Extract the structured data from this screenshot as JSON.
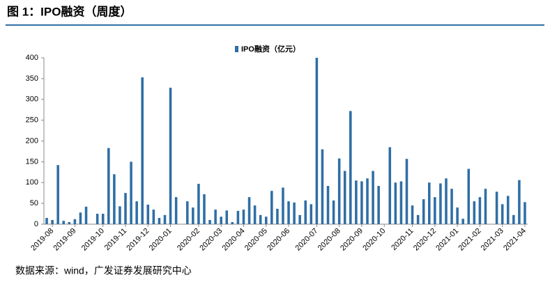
{
  "chart_data": {
    "type": "bar",
    "title": "图 1：IPO融资（周度）",
    "source": "数据来源：wind，广发证券发展研究中心",
    "categories": [
      null,
      "2019-08",
      null,
      null,
      null,
      "2019-09",
      null,
      null,
      null,
      null,
      "2019-10",
      null,
      null,
      null,
      "2019-11",
      null,
      null,
      null,
      "2019-12",
      null,
      null,
      null,
      "2020-01",
      null,
      null,
      null,
      null,
      "2020-02",
      null,
      null,
      null,
      "2020-03",
      null,
      null,
      null,
      "2020-04",
      null,
      null,
      null,
      "2020-05",
      null,
      null,
      null,
      "2020-06",
      null,
      null,
      null,
      null,
      "2020-07",
      null,
      null,
      null,
      "2020-08",
      null,
      null,
      null,
      "2020-09",
      null,
      null,
      null,
      "2020-10",
      null,
      null,
      null,
      null,
      "2020-11",
      null,
      null,
      null,
      "2020-12",
      null,
      null,
      null,
      "2021-01",
      null,
      null,
      null,
      "2021-02",
      null,
      null,
      null,
      "2021-03",
      null,
      null,
      null,
      "2021-04"
    ],
    "series": [
      {
        "name": "IPO融资（亿元）",
        "color": "#2f6ea5",
        "values": [
          15,
          10,
          142,
          8,
          5,
          12,
          28,
          42,
          0,
          25,
          25,
          183,
          120,
          43,
          75,
          150,
          55,
          353,
          47,
          35,
          15,
          22,
          328,
          65,
          0,
          55,
          40,
          97,
          72,
          10,
          35,
          18,
          33,
          5,
          32,
          35,
          65,
          45,
          22,
          18,
          80,
          37,
          88,
          55,
          52,
          22,
          57,
          48,
          400,
          180,
          92,
          57,
          158,
          128,
          272,
          105,
          103,
          110,
          128,
          92,
          0,
          185,
          100,
          103,
          157,
          45,
          22,
          60,
          100,
          65,
          98,
          110,
          85,
          40,
          13,
          133,
          55,
          65,
          85,
          0,
          78,
          48,
          68,
          22,
          106,
          53
        ]
      }
    ],
    "ylim": [
      0,
      400
    ],
    "yticks": [
      0,
      50,
      100,
      150,
      200,
      250,
      300,
      350,
      400
    ],
    "legend": "top"
  }
}
